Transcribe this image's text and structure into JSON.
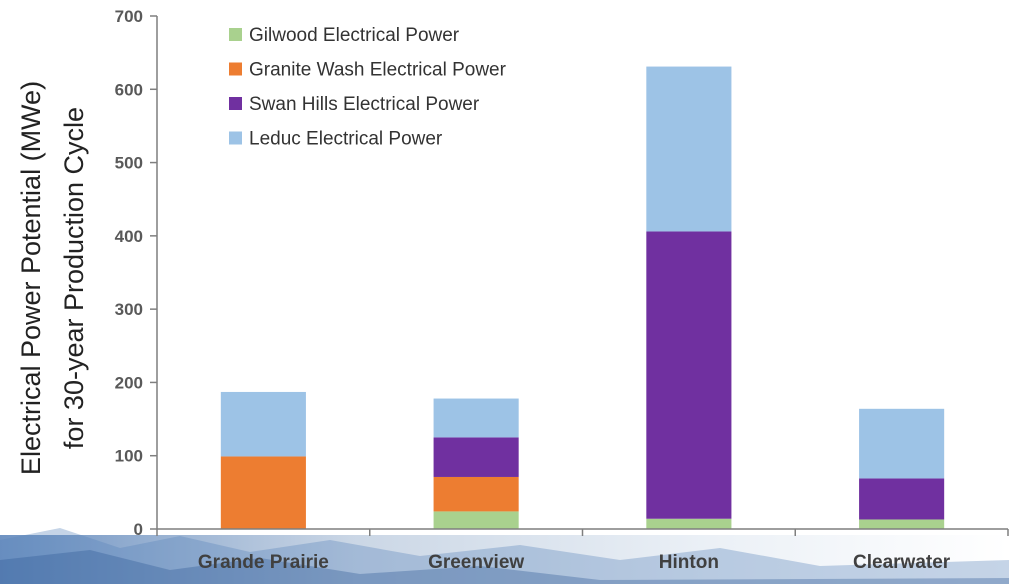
{
  "chart_data": {
    "type": "bar",
    "stacked": true,
    "categories": [
      "Grande Prairie",
      "Greenview",
      "Hinton",
      "Clearwater"
    ],
    "ylabel": [
      "Electrical Power Potential (MWe)",
      "for 30-year Production Cycle"
    ],
    "ylim": [
      0,
      700
    ],
    "yticks": [
      0,
      100,
      200,
      300,
      400,
      500,
      600,
      700
    ],
    "grid": false,
    "legend_position": "top-left",
    "series": [
      {
        "name": "Gilwood Electrical Power",
        "color": "#a9d18e",
        "values": [
          0,
          24,
          14,
          13
        ]
      },
      {
        "name": "Granite Wash Electrical Power",
        "color": "#ed7d31",
        "values": [
          99,
          47,
          0,
          0
        ]
      },
      {
        "name": "Swan Hills Electrical Power",
        "color": "#7030a0",
        "values": [
          0,
          54,
          392,
          56
        ]
      },
      {
        "name": "Leduc Electrical Power",
        "color": "#9dc3e6",
        "values": [
          88,
          53,
          225,
          95
        ]
      }
    ],
    "legend_order": [
      0,
      1,
      2,
      3
    ]
  }
}
